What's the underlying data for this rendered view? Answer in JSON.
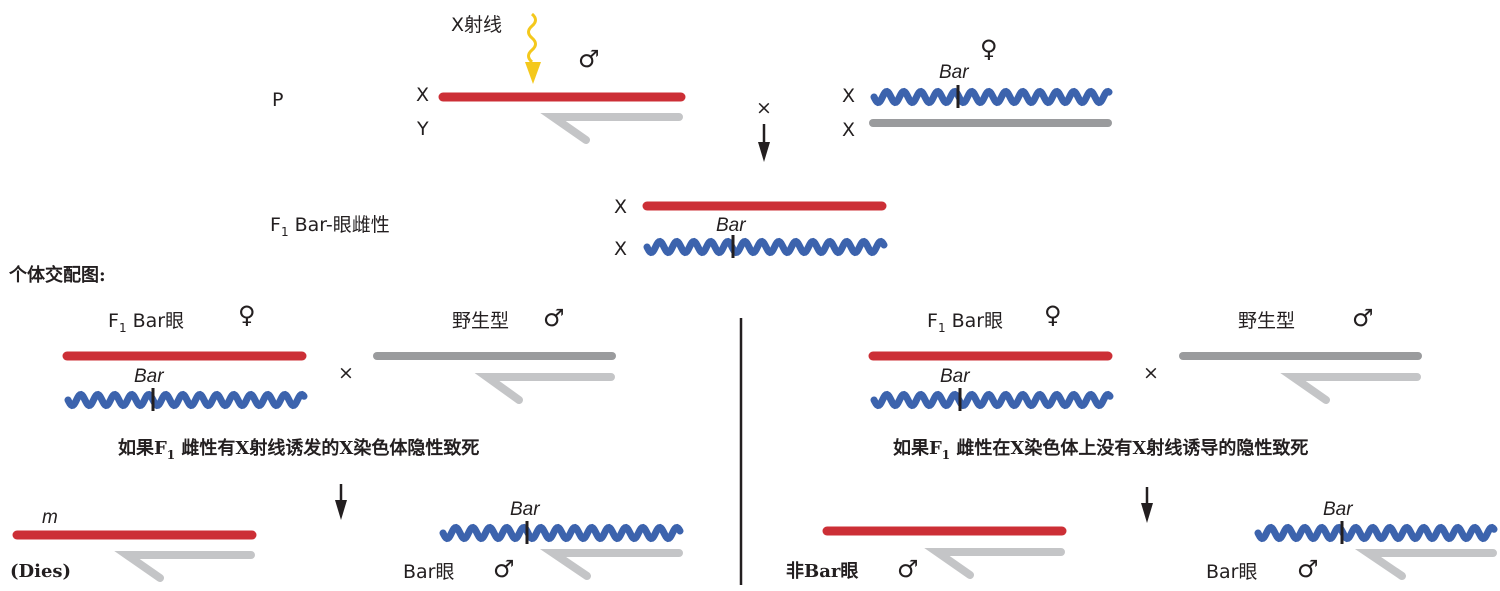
{
  "labels": {
    "xray": "X射线",
    "x_chrom": "X",
    "y_chrom": "Y",
    "p": "P",
    "cross": "×",
    "male": "♂",
    "female": "♀",
    "bar": "Bar",
    "f1_letter": "F",
    "f1_sub": "1",
    "f1_desc": "Bar-眼雌性",
    "cross_diagram_title": "个体交配图:",
    "f1_bar_eye": "Bar眼",
    "wild_type": "野生型",
    "left_if_a": "如果F",
    "left_if_b": "雌性有X射线诱发的X染色体隐性致死",
    "right_if_a": "如果F",
    "right_if_b": "雌性在X染色体上没有X射线诱导的隐性致死",
    "mutation_m": "m",
    "dies": "(Dies)",
    "bar_eye": "Bar眼",
    "non_bar_eye": "非Bar眼"
  },
  "colors": {
    "red_chromosome": "#cc2f36",
    "blue_chromosome": "#3c63ad",
    "gray_chromosome": "#9a9b9d",
    "light_gray_chromosome": "#c4c5c7",
    "xray_arrow": "#f4c81c",
    "text": "#231f20"
  }
}
